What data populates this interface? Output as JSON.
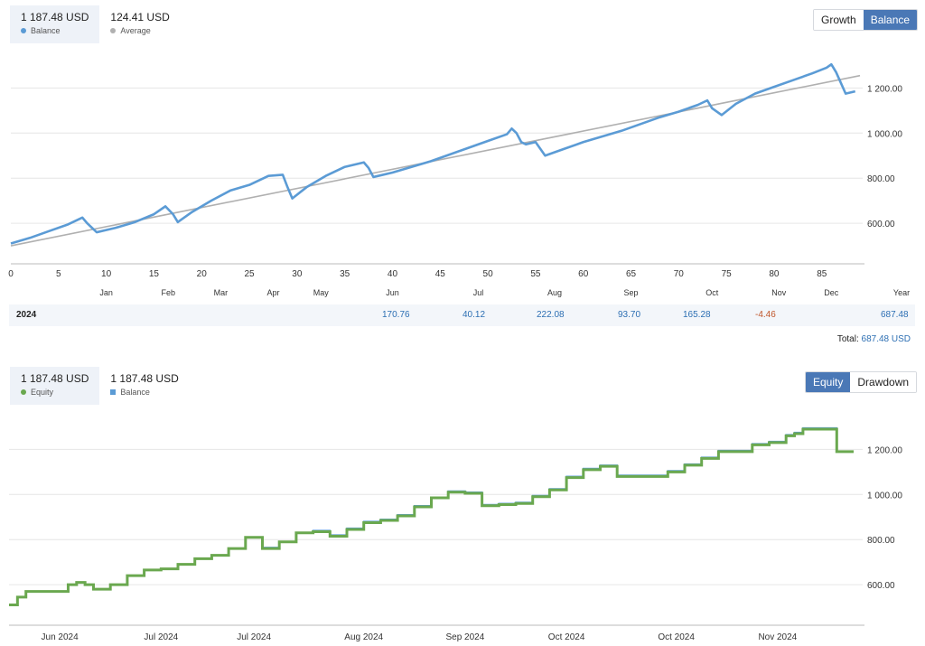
{
  "top": {
    "legend": [
      {
        "value": "1 187.48 USD",
        "label": "Balance",
        "color": "#5b9bd5",
        "active": true
      },
      {
        "value": "124.41 USD",
        "label": "Average",
        "color": "#b0b0b0",
        "active": false
      }
    ],
    "toggle": {
      "growth": "Growth",
      "balance": "Balance",
      "selected": "Balance"
    }
  },
  "bottom": {
    "legend": [
      {
        "value": "1 187.48 USD",
        "label": "Equity",
        "color": "#6aa84f",
        "active": true
      },
      {
        "value": "1 187.48 USD",
        "label": "Balance",
        "color": "#5b9bd5",
        "active": false
      }
    ],
    "toggle": {
      "equity": "Equity",
      "drawdown": "Drawdown",
      "selected": "Equity"
    }
  },
  "year_table": {
    "year": "2024",
    "column_header": "Year",
    "cells": [
      {
        "month": "Jun",
        "value": "170.76",
        "color": "#2d6fb3"
      },
      {
        "month": "Jul",
        "value": "40.12",
        "color": "#2d6fb3"
      },
      {
        "month": "Aug",
        "value": "222.08",
        "color": "#2d6fb3"
      },
      {
        "month": "Sep",
        "value": "93.70",
        "color": "#2d6fb3"
      },
      {
        "month": "Oct",
        "value": "165.28",
        "color": "#2d6fb3"
      },
      {
        "month": "Nov",
        "value": "-4.46",
        "color": "#c0562b"
      },
      {
        "month": "Year",
        "value": "687.48",
        "color": "#2d6fb3"
      }
    ],
    "total_label": "Total:",
    "total_value": "687.48 USD"
  },
  "chart_data": [
    {
      "type": "line",
      "xlim": [
        0,
        89
      ],
      "ylim": [
        420,
        1390
      ],
      "y_ticks": [
        600,
        800,
        1000,
        1200
      ],
      "y_tick_labels": [
        "600.00",
        "800.00",
        "1 000.00",
        "1 200.00"
      ],
      "x_ticks": [
        0,
        5,
        10,
        15,
        20,
        25,
        30,
        35,
        40,
        45,
        50,
        55,
        60,
        65,
        70,
        75,
        80,
        85
      ],
      "month_labels": [
        "Jan",
        "Feb",
        "Mar",
        "Apr",
        "May",
        "Jun",
        "Jul",
        "Aug",
        "Sep",
        "Oct",
        "Nov",
        "Dec"
      ],
      "month_positions": [
        10,
        16.5,
        22,
        27.5,
        32.5,
        40,
        49,
        57,
        65,
        73.5,
        80.5,
        86
      ],
      "series": [
        {
          "name": "Balance",
          "color": "#5b9bd5",
          "x": [
            0,
            2,
            4,
            6,
            7.5,
            8,
            9,
            11,
            13,
            15,
            16.2,
            17,
            17.5,
            19,
            21,
            23,
            25,
            27,
            28.5,
            29,
            29.5,
            31,
            33,
            35,
            37,
            37.5,
            38,
            40,
            42,
            44,
            46,
            48,
            50,
            52,
            52.5,
            53,
            53.5,
            54,
            55,
            56,
            58,
            60,
            62,
            64,
            66,
            68,
            70,
            72,
            73,
            73.5,
            74.5,
            76,
            78,
            80,
            82,
            84,
            85.5,
            86,
            86.5,
            87.5,
            88.5
          ],
          "y": [
            510,
            535,
            565,
            595,
            625,
            600,
            560,
            580,
            605,
            640,
            675,
            640,
            605,
            650,
            700,
            745,
            770,
            810,
            815,
            760,
            710,
            760,
            810,
            850,
            870,
            845,
            805,
            825,
            850,
            875,
            905,
            935,
            965,
            995,
            1020,
            1000,
            960,
            950,
            960,
            900,
            930,
            960,
            985,
            1010,
            1040,
            1070,
            1095,
            1125,
            1145,
            1110,
            1080,
            1130,
            1175,
            1205,
            1235,
            1265,
            1290,
            1305,
            1270,
            1175,
            1185
          ]
        },
        {
          "name": "Average",
          "color": "#b0b0b0",
          "x": [
            0,
            89
          ],
          "y": [
            500,
            1255
          ]
        }
      ]
    },
    {
      "type": "line",
      "xlim": [
        0,
        100
      ],
      "ylim": [
        420,
        1390
      ],
      "y_ticks": [
        600,
        800,
        1000,
        1200
      ],
      "y_tick_labels": [
        "600.00",
        "800.00",
        "1 000.00",
        "1 200.00"
      ],
      "x_labels": [
        "Jun 2024",
        "Jul 2024",
        "Jul 2024",
        "Aug 2024",
        "Sep 2024",
        "Oct 2024",
        "Oct 2024",
        "Nov 2024"
      ],
      "x_label_positions": [
        6,
        18,
        29,
        42,
        54,
        66,
        79,
        91
      ],
      "series": [
        {
          "name": "Equity",
          "color": "#6aa84f",
          "x": [
            0,
            1,
            2,
            3,
            5,
            7,
            8,
            9,
            10,
            12,
            14,
            16,
            18,
            20,
            22,
            24,
            26,
            28,
            30,
            32,
            34,
            36,
            38,
            40,
            42,
            44,
            46,
            48,
            50,
            52,
            54,
            56,
            58,
            60,
            62,
            64,
            66,
            68,
            70,
            72,
            74,
            76,
            78,
            80,
            82,
            84,
            86,
            88,
            90,
            92,
            93,
            94,
            96,
            98,
            100
          ],
          "y": [
            510,
            545,
            570,
            570,
            570,
            600,
            610,
            600,
            580,
            600,
            640,
            665,
            670,
            690,
            715,
            730,
            760,
            810,
            760,
            790,
            830,
            835,
            815,
            845,
            875,
            885,
            905,
            945,
            985,
            1010,
            1005,
            950,
            955,
            960,
            990,
            1020,
            1075,
            1110,
            1125,
            1080,
            1080,
            1080,
            1100,
            1130,
            1160,
            1190,
            1190,
            1220,
            1230,
            1260,
            1270,
            1290,
            1290,
            1190,
            1190
          ]
        },
        {
          "name": "Balance",
          "color": "#5b9bd5",
          "x": [
            0,
            1,
            2,
            3,
            5,
            7,
            8,
            9,
            10,
            12,
            14,
            16,
            18,
            20,
            22,
            24,
            26,
            28,
            30,
            32,
            34,
            36,
            38,
            40,
            42,
            44,
            46,
            48,
            50,
            52,
            54,
            56,
            58,
            60,
            62,
            64,
            66,
            68,
            70,
            72,
            74,
            76,
            78,
            80,
            82,
            84,
            86,
            88,
            90,
            92,
            93,
            94,
            96,
            98,
            100
          ],
          "y": [
            510,
            545,
            570,
            570,
            570,
            600,
            610,
            600,
            580,
            600,
            640,
            665,
            670,
            690,
            715,
            730,
            760,
            810,
            765,
            790,
            830,
            840,
            820,
            850,
            880,
            890,
            910,
            950,
            985,
            1015,
            1010,
            955,
            960,
            965,
            995,
            1025,
            1080,
            1115,
            1130,
            1085,
            1085,
            1085,
            1105,
            1135,
            1165,
            1195,
            1195,
            1225,
            1235,
            1265,
            1275,
            1295,
            1295,
            1190,
            1190
          ]
        }
      ]
    }
  ]
}
